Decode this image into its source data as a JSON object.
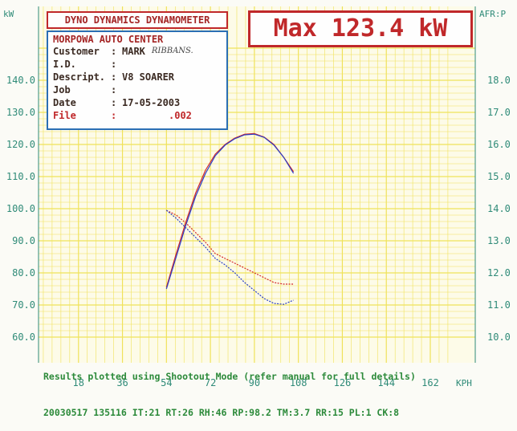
{
  "header": {
    "title": "DYNO DYNAMICS DYNAMOMETER",
    "max_power": "Max 123.4 kW"
  },
  "info": {
    "shop": "MORPOWA AUTO CENTER",
    "rows": [
      {
        "key": "Customer",
        "value": "MARK"
      },
      {
        "key": "I.D.",
        "value": ""
      },
      {
        "key": "Descript.",
        "value": "V8 SOARER"
      },
      {
        "key": "Job",
        "value": ""
      },
      {
        "key": "Date",
        "value": "17-05-2003"
      },
      {
        "key": "File",
        "value": ".002"
      }
    ],
    "handwritten_name": "RIBBANS."
  },
  "footer": {
    "line1": "Results plotted using Shootout Mode (refer manual for full details)",
    "line2": "20030517 135116 IT:21 RT:26 RH:46 RP:98.2 TM:3.7 RR:15 PL:1 CK:8"
  },
  "colors": {
    "grid": "#f0e25a",
    "axis_text": "#2f8b78",
    "red_run": "#d42a2a",
    "blue_run": "#2a3fc8",
    "title": "#c0282a",
    "footer": "#2c8a3a"
  },
  "chart_data": {
    "type": "line",
    "ylabel_left": "kW",
    "ylabel_right": "AFR:P",
    "xunit": "KPH",
    "xlim": [
      0,
      170
    ],
    "ylim_left": [
      60,
      150
    ],
    "ylim_right": [
      10,
      19
    ],
    "x_ticks": [
      18,
      36,
      54,
      72,
      90,
      108,
      126,
      144,
      162
    ],
    "y_ticks_left": [
      "60.0",
      "70.0",
      "80.0",
      "90.0",
      "100.0",
      "110.0",
      "120.0",
      "130.0",
      "140.0"
    ],
    "y_ticks_right": [
      "10.0",
      "11.0",
      "12.0",
      "13.0",
      "14.0",
      "15.0",
      "16.0",
      "17.0",
      "18.0"
    ],
    "grid": true,
    "series": [
      {
        "color": "red",
        "axis": "left",
        "style": "solid",
        "x": [
          54,
          58,
          62,
          66,
          70,
          74,
          78,
          82,
          86,
          90,
          94,
          98,
          102,
          106
        ],
        "y": [
          75.5,
          86,
          96,
          105,
          112,
          117,
          120,
          122,
          123.2,
          123.4,
          122.3,
          120,
          116,
          111.5
        ]
      },
      {
        "color": "blue",
        "axis": "left",
        "style": "solid",
        "x": [
          54,
          58,
          62,
          66,
          70,
          74,
          78,
          82,
          86,
          90,
          94,
          98,
          102,
          106
        ],
        "y": [
          75,
          85,
          95,
          104,
          111,
          116.5,
          119.8,
          121.8,
          123,
          123.2,
          122.2,
          119.8,
          116,
          111
        ]
      },
      {
        "color": "red",
        "axis": "right",
        "style": "dashed",
        "x": [
          54,
          58,
          62,
          66,
          70,
          74,
          78,
          82,
          86,
          90,
          94,
          98,
          102,
          106
        ],
        "y": [
          13.95,
          13.8,
          13.55,
          13.25,
          12.95,
          12.6,
          12.45,
          12.3,
          12.15,
          12.0,
          11.85,
          11.7,
          11.65,
          11.65
        ]
      },
      {
        "color": "blue",
        "axis": "right",
        "style": "dashed",
        "x": [
          54,
          58,
          62,
          66,
          70,
          74,
          78,
          82,
          86,
          90,
          94,
          98,
          102,
          106
        ],
        "y": [
          13.95,
          13.7,
          13.4,
          13.1,
          12.8,
          12.45,
          12.25,
          12.0,
          11.7,
          11.45,
          11.2,
          11.05,
          11.02,
          11.15
        ]
      }
    ]
  }
}
